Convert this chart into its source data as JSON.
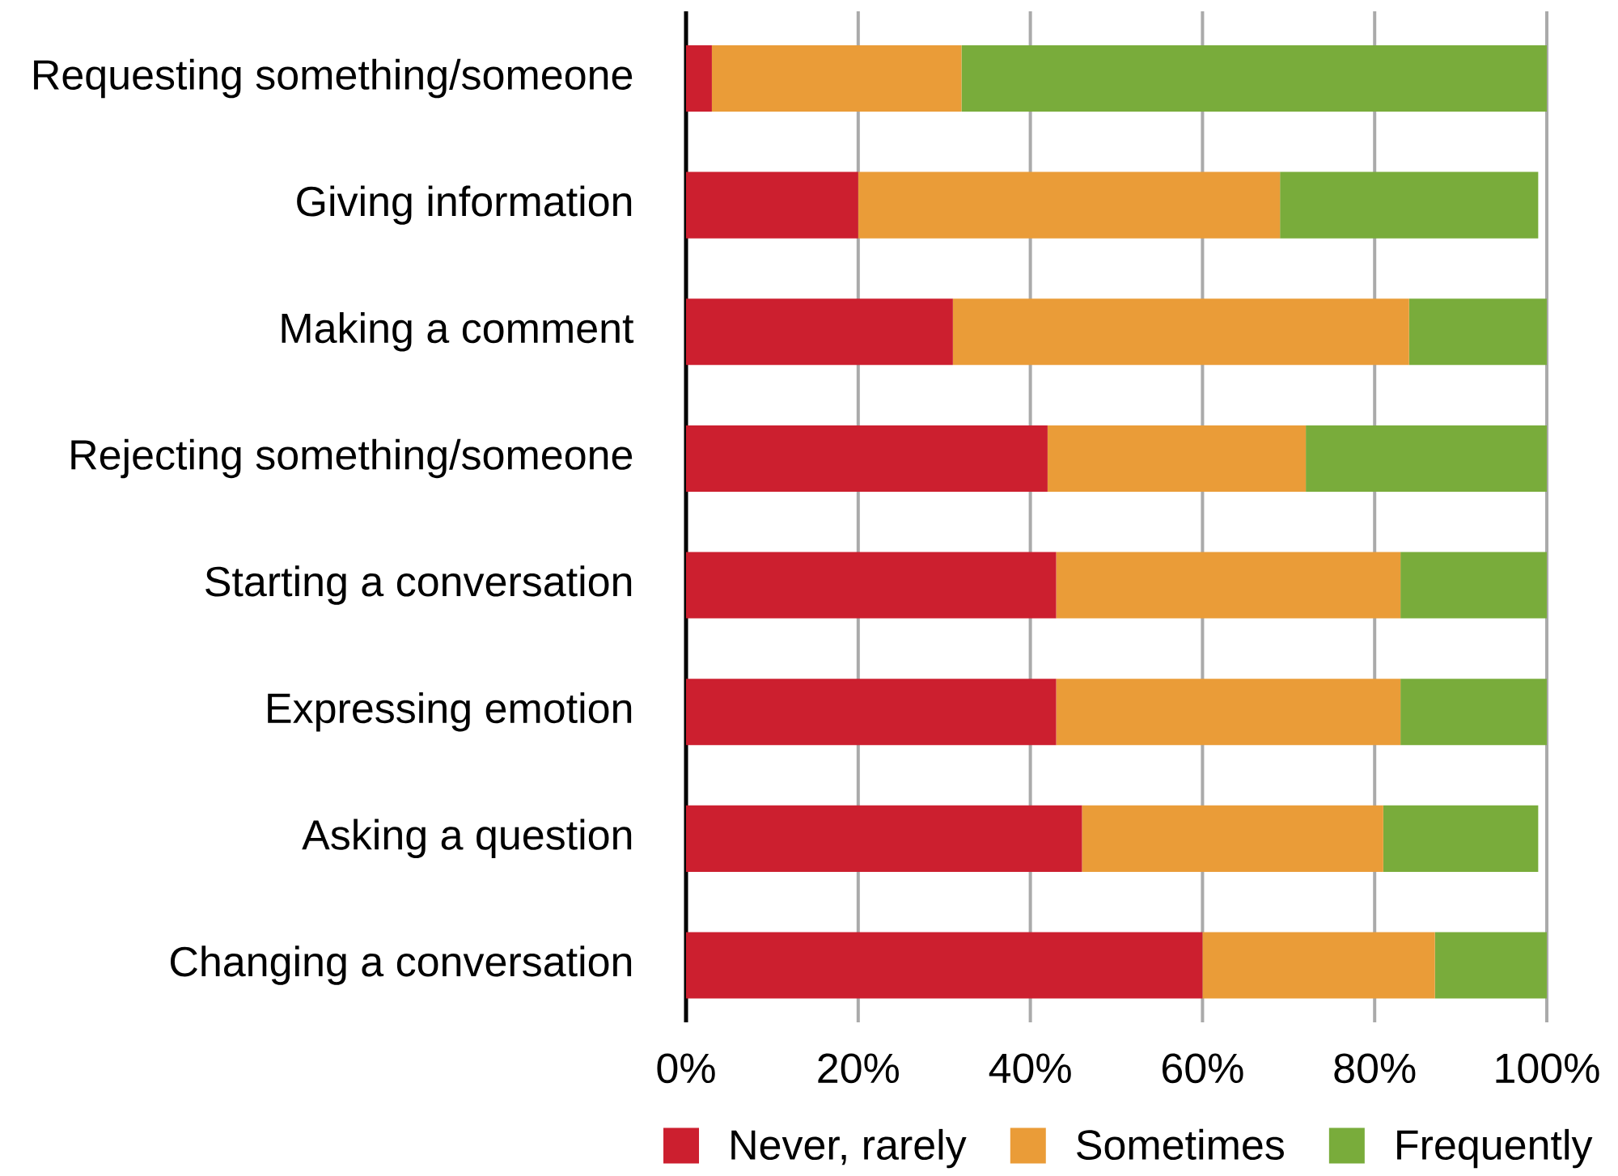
{
  "chart_data": {
    "type": "bar",
    "orientation": "horizontal",
    "stacked": true,
    "categories": [
      "Requesting something/someone",
      "Giving information",
      "Making a comment",
      "Rejecting something/someone",
      "Starting a conversation",
      "Expressing emotion",
      "Asking a question",
      "Changing a conversation"
    ],
    "series": [
      {
        "name": "Never, rarely",
        "color": "#cc1f2f",
        "values": [
          3,
          20,
          31,
          42,
          43,
          43,
          46,
          60
        ]
      },
      {
        "name": "Sometimes",
        "color": "#ea9c38",
        "values": [
          29,
          49,
          53,
          30,
          40,
          40,
          35,
          27
        ]
      },
      {
        "name": "Frequently",
        "color": "#79ac3b",
        "values": [
          68,
          30,
          16,
          28,
          17,
          17,
          18,
          13
        ]
      }
    ],
    "xlim": [
      0,
      100
    ],
    "xticks": [
      {
        "value": 0,
        "label": "0%"
      },
      {
        "value": 20,
        "label": "20%"
      },
      {
        "value": 40,
        "label": "40%"
      },
      {
        "value": 60,
        "label": "60%"
      },
      {
        "value": 80,
        "label": "80%"
      },
      {
        "value": 100,
        "label": "100%"
      }
    ],
    "grid": "x",
    "legend": "bottom"
  }
}
